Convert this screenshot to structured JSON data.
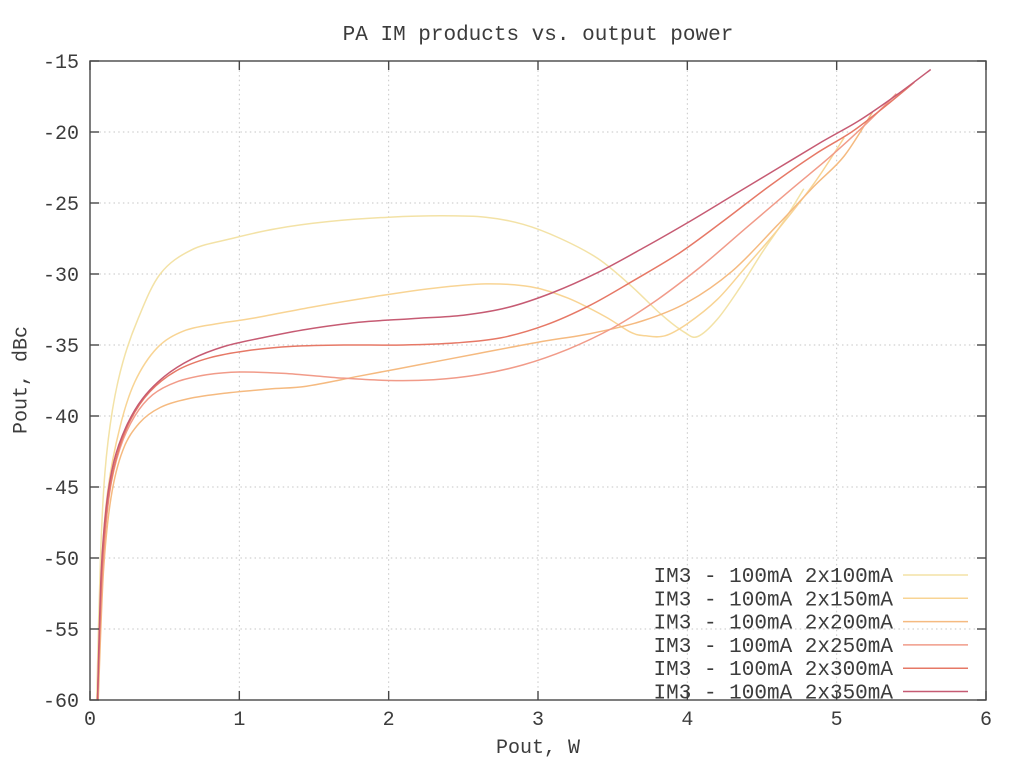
{
  "chart_data": {
    "type": "line",
    "title": "PA IM products vs. output power",
    "xlabel": "Pout, W",
    "ylabel": "Pout, dBc",
    "xlim": [
      0,
      6
    ],
    "ylim": [
      -60,
      -15
    ],
    "xticks": [
      0,
      1,
      2,
      3,
      4,
      5,
      6
    ],
    "yticks": [
      -60,
      -55,
      -50,
      -45,
      -40,
      -35,
      -30,
      -25,
      -20,
      -15
    ],
    "grid": "dotted",
    "legend_position": "inside bottom-right",
    "series": [
      {
        "name": "IM3 - 100mA 2x100mA",
        "color": "#f3e2a6",
        "points": [
          [
            0.045,
            -60
          ],
          [
            0.07,
            -50
          ],
          [
            0.1,
            -44
          ],
          [
            0.15,
            -39.6
          ],
          [
            0.22,
            -36.2
          ],
          [
            0.32,
            -33.2
          ],
          [
            0.47,
            -30.0
          ],
          [
            0.68,
            -28.3
          ],
          [
            0.95,
            -27.5
          ],
          [
            1.25,
            -26.8
          ],
          [
            1.6,
            -26.3
          ],
          [
            2.0,
            -26.0
          ],
          [
            2.35,
            -25.9
          ],
          [
            2.65,
            -26.0
          ],
          [
            2.9,
            -26.5
          ],
          [
            3.15,
            -27.5
          ],
          [
            3.4,
            -28.9
          ],
          [
            3.62,
            -30.8
          ],
          [
            3.82,
            -32.8
          ],
          [
            3.98,
            -34.1
          ],
          [
            4.07,
            -34.4
          ],
          [
            4.2,
            -33.2
          ],
          [
            4.35,
            -31.0
          ],
          [
            4.5,
            -28.5
          ],
          [
            4.65,
            -26.2
          ],
          [
            4.78,
            -24.0
          ]
        ]
      },
      {
        "name": "IM3 - 100mA 2x150mA",
        "color": "#f8d494",
        "points": [
          [
            0.05,
            -60
          ],
          [
            0.08,
            -50.5
          ],
          [
            0.12,
            -45.2
          ],
          [
            0.2,
            -40.8
          ],
          [
            0.3,
            -37.6
          ],
          [
            0.45,
            -35.2
          ],
          [
            0.63,
            -34.0
          ],
          [
            0.85,
            -33.5
          ],
          [
            1.1,
            -33.1
          ],
          [
            1.5,
            -32.3
          ],
          [
            1.9,
            -31.6
          ],
          [
            2.3,
            -31.0
          ],
          [
            2.65,
            -30.7
          ],
          [
            2.95,
            -30.9
          ],
          [
            3.2,
            -31.7
          ],
          [
            3.45,
            -33.0
          ],
          [
            3.62,
            -34.1
          ],
          [
            3.72,
            -34.35
          ],
          [
            3.85,
            -34.35
          ],
          [
            4.0,
            -33.5
          ],
          [
            4.2,
            -31.8
          ],
          [
            4.4,
            -29.4
          ],
          [
            4.62,
            -26.7
          ],
          [
            4.85,
            -23.6
          ],
          [
            5.05,
            -20.4
          ]
        ]
      },
      {
        "name": "IM3 - 100mA 2x200mA",
        "color": "#f5ba80",
        "points": [
          [
            0.055,
            -60
          ],
          [
            0.09,
            -51
          ],
          [
            0.14,
            -45.8
          ],
          [
            0.22,
            -42.4
          ],
          [
            0.33,
            -40.5
          ],
          [
            0.47,
            -39.4
          ],
          [
            0.65,
            -38.8
          ],
          [
            0.9,
            -38.4
          ],
          [
            1.2,
            -38.1
          ],
          [
            1.45,
            -37.9
          ],
          [
            1.8,
            -37.2
          ],
          [
            2.2,
            -36.4
          ],
          [
            2.6,
            -35.6
          ],
          [
            3.0,
            -34.8
          ],
          [
            3.35,
            -34.2
          ],
          [
            3.7,
            -33.3
          ],
          [
            4.0,
            -32.0
          ],
          [
            4.3,
            -29.8
          ],
          [
            4.6,
            -26.6
          ],
          [
            4.85,
            -23.8
          ],
          [
            5.05,
            -21.7
          ],
          [
            5.24,
            -18.6
          ]
        ]
      },
      {
        "name": "IM3 - 100mA 2x250mA",
        "color": "#f19b89",
        "points": [
          [
            0.05,
            -60
          ],
          [
            0.085,
            -50.8
          ],
          [
            0.13,
            -45.5
          ],
          [
            0.2,
            -42.3
          ],
          [
            0.3,
            -40.0
          ],
          [
            0.42,
            -38.5
          ],
          [
            0.58,
            -37.6
          ],
          [
            0.78,
            -37.1
          ],
          [
            1.0,
            -36.9
          ],
          [
            1.3,
            -37.0
          ],
          [
            1.65,
            -37.3
          ],
          [
            2.0,
            -37.5
          ],
          [
            2.3,
            -37.45
          ],
          [
            2.6,
            -37.1
          ],
          [
            2.9,
            -36.4
          ],
          [
            3.2,
            -35.3
          ],
          [
            3.5,
            -33.8
          ],
          [
            3.8,
            -31.8
          ],
          [
            4.1,
            -29.4
          ],
          [
            4.4,
            -26.7
          ],
          [
            4.7,
            -24.0
          ],
          [
            4.95,
            -21.8
          ],
          [
            5.18,
            -19.6
          ],
          [
            5.4,
            -17.3
          ]
        ]
      },
      {
        "name": "IM3 - 100mA 2x300mA",
        "color": "#e67866",
        "points": [
          [
            0.05,
            -60
          ],
          [
            0.08,
            -51
          ],
          [
            0.12,
            -46
          ],
          [
            0.18,
            -42.8
          ],
          [
            0.27,
            -40.3
          ],
          [
            0.4,
            -38.3
          ],
          [
            0.58,
            -36.8
          ],
          [
            0.8,
            -35.9
          ],
          [
            1.05,
            -35.4
          ],
          [
            1.35,
            -35.1
          ],
          [
            1.7,
            -35.0
          ],
          [
            2.1,
            -35.0
          ],
          [
            2.45,
            -34.85
          ],
          [
            2.75,
            -34.5
          ],
          [
            3.05,
            -33.6
          ],
          [
            3.35,
            -32.2
          ],
          [
            3.65,
            -30.4
          ],
          [
            3.95,
            -28.5
          ],
          [
            4.25,
            -26.2
          ],
          [
            4.55,
            -23.8
          ],
          [
            4.85,
            -21.6
          ],
          [
            5.1,
            -20.0
          ],
          [
            5.3,
            -18.4
          ],
          [
            5.52,
            -16.5
          ]
        ]
      },
      {
        "name": "IM3 - 100mA 2x350mA",
        "color": "#c65b73",
        "points": [
          [
            0.05,
            -60
          ],
          [
            0.075,
            -51
          ],
          [
            0.11,
            -46.3
          ],
          [
            0.16,
            -43.2
          ],
          [
            0.24,
            -40.8
          ],
          [
            0.35,
            -38.8
          ],
          [
            0.5,
            -37.2
          ],
          [
            0.68,
            -36.0
          ],
          [
            0.9,
            -35.1
          ],
          [
            1.15,
            -34.5
          ],
          [
            1.45,
            -33.9
          ],
          [
            1.8,
            -33.4
          ],
          [
            2.15,
            -33.15
          ],
          [
            2.5,
            -32.9
          ],
          [
            2.8,
            -32.35
          ],
          [
            3.1,
            -31.3
          ],
          [
            3.4,
            -29.9
          ],
          [
            3.7,
            -28.2
          ],
          [
            4.0,
            -26.4
          ],
          [
            4.3,
            -24.5
          ],
          [
            4.6,
            -22.6
          ],
          [
            4.9,
            -20.7
          ],
          [
            5.15,
            -19.2
          ],
          [
            5.4,
            -17.4
          ],
          [
            5.63,
            -15.6
          ]
        ]
      }
    ]
  },
  "styles": {
    "background": "#ffffff",
    "border_color": "#464646",
    "grid_color": "#c6c6c6",
    "text_color": "#3c3c3c"
  }
}
